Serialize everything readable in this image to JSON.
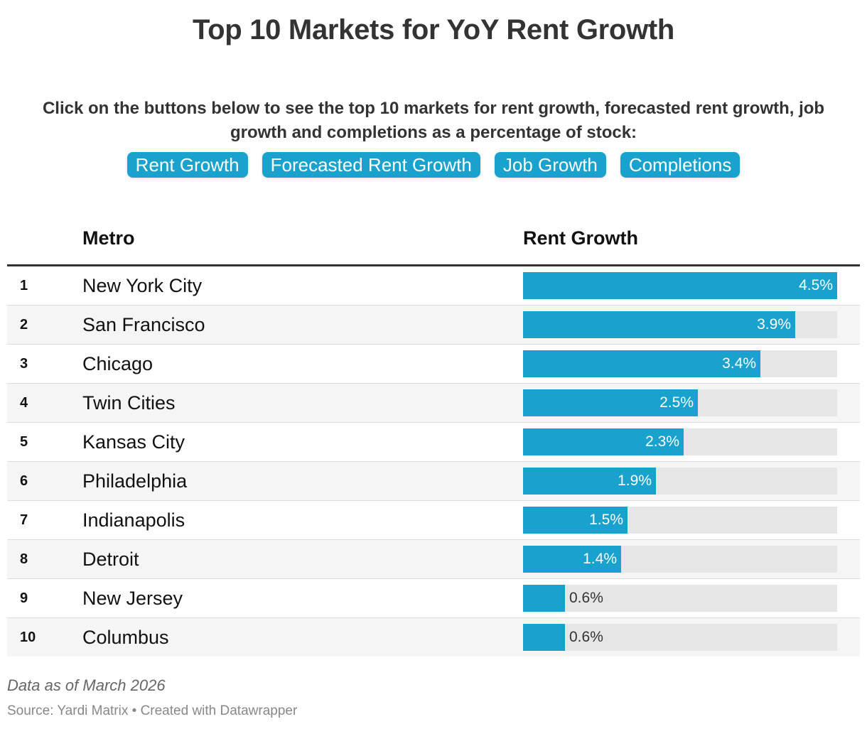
{
  "title": "Top 10 Markets for YoY Rent Growth",
  "subtitle": "Click on the buttons below to see the top 10 markets for rent growth, forecasted rent growth, job growth and completions as a percentage of stock:",
  "buttons": [
    "Rent Growth",
    "Forecasted Rent Growth",
    "Job Growth",
    "Completions"
  ],
  "table": {
    "rank_header": "",
    "metro_header": "Metro",
    "value_header": "Rent Growth"
  },
  "colors": {
    "bar": "#1aa2cf",
    "bar_track": "#e6e6e6",
    "button": "#1aa2cf"
  },
  "chart_data": {
    "type": "bar",
    "orientation": "horizontal",
    "title": "Top 10 Markets for YoY Rent Growth",
    "xlabel": "Rent Growth",
    "ylabel": "Metro",
    "xlim": [
      0,
      4.5
    ],
    "categories": [
      "New York City",
      "San Francisco",
      "Chicago",
      "Twin Cities",
      "Kansas City",
      "Philadelphia",
      "Indianapolis",
      "Detroit",
      "New Jersey",
      "Columbus"
    ],
    "ranks": [
      "1",
      "2",
      "3",
      "4",
      "5",
      "6",
      "7",
      "8",
      "9",
      "10"
    ],
    "values": [
      4.5,
      3.9,
      3.4,
      2.5,
      2.3,
      1.9,
      1.5,
      1.4,
      0.6,
      0.6
    ],
    "labels": [
      "4.5%",
      "3.9%",
      "3.4%",
      "2.5%",
      "2.3%",
      "1.9%",
      "1.5%",
      "1.4%",
      "0.6%",
      "0.6%"
    ]
  },
  "notes": "Data as of March 2026",
  "source": "Source: Yardi Matrix • Created with Datawrapper"
}
